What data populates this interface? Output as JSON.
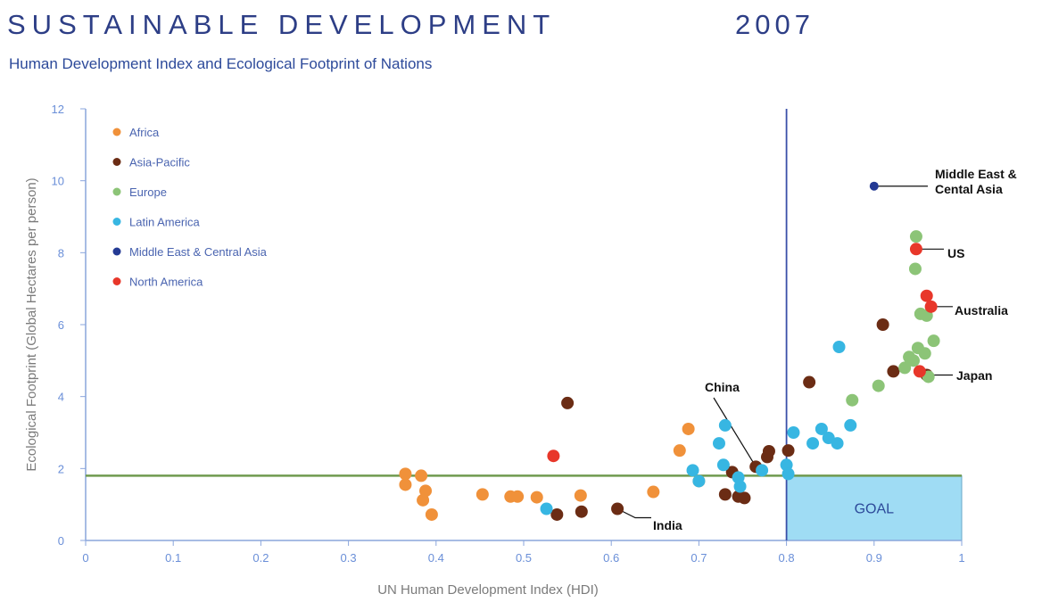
{
  "header": {
    "title": "SUSTAINABLE DEVELOPMENT",
    "year": "2007",
    "subtitle": "Human Development Index and Ecological Footprint of Nations"
  },
  "chart_data": {
    "type": "scatter",
    "xlabel": "UN Human Development Index (HDI)",
    "ylabel": "Ecological Footprint (Global Hectares per person)",
    "xlim": [
      0,
      1
    ],
    "ylim": [
      0,
      12
    ],
    "xticks": [
      "0",
      "0.1",
      "0.2",
      "0.3",
      "0.4",
      "0.5",
      "0.6",
      "0.7",
      "0.8",
      "0.9",
      "1"
    ],
    "yticks": [
      "0",
      "2",
      "4",
      "6",
      "8",
      "10",
      "12"
    ],
    "legend_position": "top-left",
    "thresholds": {
      "hdi": 0.8,
      "footprint": 1.8
    },
    "goal_label": "GOAL",
    "series": [
      {
        "name": "Africa",
        "color": "#f0913a",
        "points": [
          [
            0.365,
            1.85
          ],
          [
            0.365,
            1.55
          ],
          [
            0.383,
            1.8
          ],
          [
            0.385,
            1.12
          ],
          [
            0.388,
            1.38
          ],
          [
            0.395,
            0.72
          ],
          [
            0.453,
            1.28
          ],
          [
            0.485,
            1.22
          ],
          [
            0.493,
            1.22
          ],
          [
            0.515,
            1.2
          ],
          [
            0.565,
            1.25
          ],
          [
            0.648,
            1.35
          ],
          [
            0.678,
            2.5
          ],
          [
            0.688,
            3.1
          ],
          [
            0.7,
            1.65
          ]
        ]
      },
      {
        "name": "Asia-Pacific",
        "color": "#6b2c14",
        "points": [
          [
            0.538,
            0.72
          ],
          [
            0.55,
            3.82
          ],
          [
            0.566,
            0.8
          ],
          [
            0.607,
            0.88
          ],
          [
            0.73,
            1.28
          ],
          [
            0.738,
            1.9
          ],
          [
            0.745,
            1.22
          ],
          [
            0.752,
            1.18
          ],
          [
            0.765,
            2.05
          ],
          [
            0.778,
            2.32
          ],
          [
            0.78,
            2.48
          ],
          [
            0.802,
            2.5
          ],
          [
            0.826,
            4.4
          ],
          [
            0.91,
            6.0
          ],
          [
            0.922,
            4.7
          ],
          [
            0.96,
            4.6
          ]
        ]
      },
      {
        "name": "Europe",
        "color": "#8cc477",
        "points": [
          [
            0.875,
            3.9
          ],
          [
            0.905,
            4.3
          ],
          [
            0.935,
            4.8
          ],
          [
            0.94,
            5.1
          ],
          [
            0.945,
            5.0
          ],
          [
            0.947,
            7.55
          ],
          [
            0.948,
            8.45
          ],
          [
            0.95,
            5.35
          ],
          [
            0.953,
            6.3
          ],
          [
            0.958,
            5.2
          ],
          [
            0.96,
            6.25
          ],
          [
            0.962,
            4.55
          ],
          [
            0.968,
            5.55
          ]
        ]
      },
      {
        "name": "Latin America",
        "color": "#37b6e2",
        "points": [
          [
            0.526,
            0.88
          ],
          [
            0.693,
            1.95
          ],
          [
            0.7,
            1.65
          ],
          [
            0.723,
            2.7
          ],
          [
            0.728,
            2.1
          ],
          [
            0.73,
            3.2
          ],
          [
            0.745,
            1.75
          ],
          [
            0.747,
            1.5
          ],
          [
            0.772,
            1.95
          ],
          [
            0.8,
            2.1
          ],
          [
            0.802,
            1.85
          ],
          [
            0.808,
            3.0
          ],
          [
            0.83,
            2.7
          ],
          [
            0.84,
            3.1
          ],
          [
            0.848,
            2.85
          ],
          [
            0.858,
            2.7
          ],
          [
            0.86,
            5.38
          ],
          [
            0.873,
            3.2
          ]
        ]
      },
      {
        "name": "Middle East & Central Asia",
        "color": "#243a94",
        "points": [
          [
            0.9,
            9.85
          ]
        ]
      },
      {
        "name": "North America",
        "color": "#e8372a",
        "points": [
          [
            0.534,
            2.35
          ],
          [
            0.948,
            8.1
          ],
          [
            0.96,
            6.8
          ],
          [
            0.965,
            6.5
          ],
          [
            0.952,
            4.7
          ]
        ]
      }
    ],
    "annotations": [
      {
        "label": "Middle East &\nCental Asia",
        "x": 0.9,
        "y": 9.85
      },
      {
        "label": "US",
        "x": 0.948,
        "y": 8.1
      },
      {
        "label": "Australia",
        "x": 0.965,
        "y": 6.5
      },
      {
        "label": "Japan",
        "x": 0.96,
        "y": 4.6
      },
      {
        "label": "China",
        "x": 0.765,
        "y": 2.05
      },
      {
        "label": "India",
        "x": 0.607,
        "y": 0.88
      }
    ]
  }
}
